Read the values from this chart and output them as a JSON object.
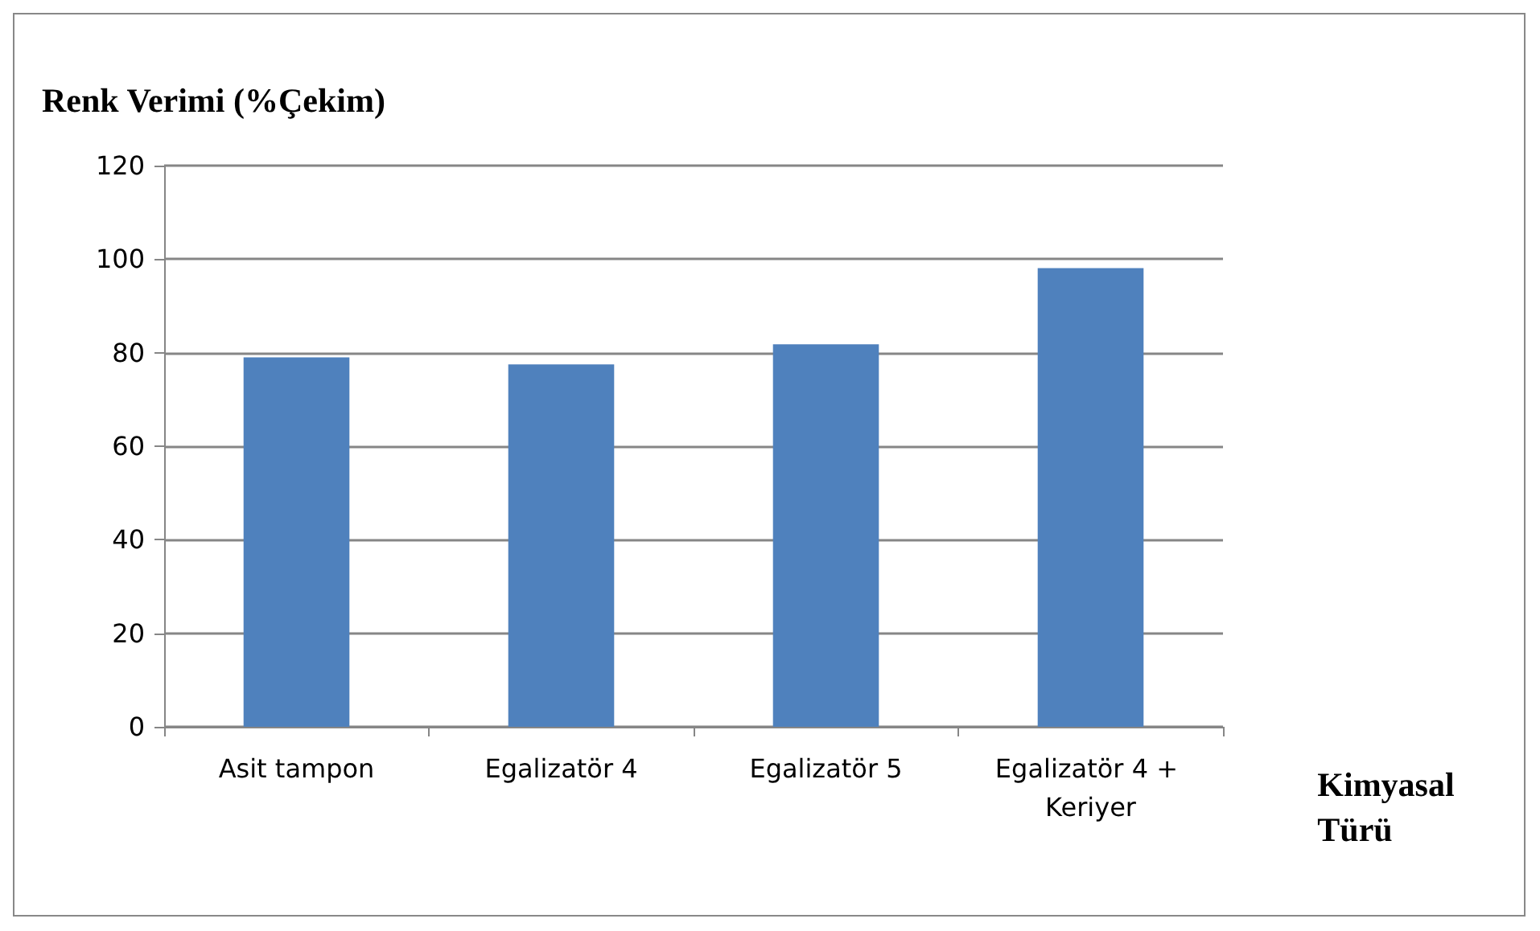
{
  "chart_data": {
    "type": "bar",
    "title": "Renk Verimi (%Çekim)",
    "xlabel": "Kimyasal\nTürü",
    "categories": [
      "Asit tampon",
      "Egalizatör 4",
      "Egalizatör 5",
      "Egalizatör 4 + Keriyer"
    ],
    "values": [
      79,
      77.5,
      81.8,
      98.1
    ],
    "color": "#4f81bd",
    "ylim": [
      0,
      120
    ],
    "yticks": [
      0,
      20,
      40,
      60,
      80,
      100,
      120
    ],
    "grid": "y"
  }
}
